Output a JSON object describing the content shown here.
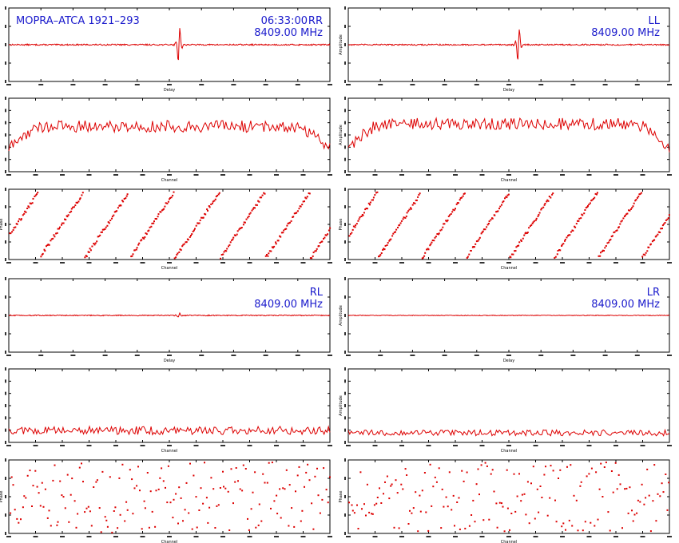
{
  "header": {
    "source": "MOPRA–ATCA 1921–293",
    "time": "06:33:00",
    "frequency": "8409.00 MHz"
  },
  "products": [
    "RR",
    "LL",
    "RL",
    "LR"
  ],
  "labels": {
    "delay_x": "Delay",
    "channel_x": "Channel",
    "amplitude_y": "Amplitude",
    "phase_y": "Phase"
  },
  "colors": {
    "trace": "#dd0000",
    "text": "#1a1acc",
    "axis": "#000000"
  },
  "chart_data": [
    {
      "type": "line",
      "product": "RR",
      "panel": "delay",
      "xlim": [
        -256,
        256
      ],
      "ylim": [
        -1,
        1
      ],
      "series": [
        {
          "name": "",
          "spike_at": 0.53,
          "spike_amp": 0.95,
          "noise": 0.02
        }
      ]
    },
    {
      "type": "line",
      "product": "RR",
      "panel": "amplitude",
      "xlim": [
        0,
        512
      ],
      "ylim": [
        0,
        1.1
      ],
      "series": [
        {
          "name": "",
          "level": 0.68,
          "rolloff": 0.12,
          "noise": 0.1
        }
      ]
    },
    {
      "type": "scatter",
      "product": "RR",
      "panel": "phase",
      "xlim": [
        0,
        512
      ],
      "ylim": [
        -180,
        180
      ],
      "series": [
        {
          "name": "",
          "wraps": 7.1,
          "noise": 0.05
        }
      ]
    },
    {
      "type": "line",
      "product": "LL",
      "panel": "delay",
      "xlim": [
        -256,
        256
      ],
      "ylim": [
        -1,
        1
      ],
      "series": [
        {
          "name": "",
          "spike_at": 0.53,
          "spike_amp": 0.9,
          "noise": 0.02
        }
      ]
    },
    {
      "type": "line",
      "product": "LL",
      "panel": "amplitude",
      "xlim": [
        0,
        512
      ],
      "ylim": [
        0,
        1.1
      ],
      "series": [
        {
          "name": "",
          "level": 0.72,
          "rolloff": 0.12,
          "noise": 0.1
        }
      ]
    },
    {
      "type": "scatter",
      "product": "LL",
      "panel": "phase",
      "xlim": [
        0,
        512
      ],
      "ylim": [
        -180,
        180
      ],
      "series": [
        {
          "name": "",
          "wraps": 7.3,
          "noise": 0.05
        }
      ]
    },
    {
      "type": "line",
      "product": "RL",
      "panel": "delay",
      "xlim": [
        -256,
        256
      ],
      "ylim": [
        -1,
        1
      ],
      "series": [
        {
          "name": "",
          "spike_at": 0.53,
          "spike_amp": 0.12,
          "noise": 0.015
        }
      ]
    },
    {
      "type": "line",
      "product": "RL",
      "panel": "amplitude",
      "xlim": [
        0,
        512
      ],
      "ylim": [
        0,
        1.1
      ],
      "series": [
        {
          "name": "",
          "level": 0.12,
          "rolloff": 0.0,
          "noise": 0.07
        }
      ]
    },
    {
      "type": "scatter",
      "product": "RL",
      "panel": "phase",
      "xlim": [
        0,
        512
      ],
      "ylim": [
        -180,
        180
      ],
      "series": [
        {
          "name": "",
          "wraps": 0,
          "noise": 1.0
        }
      ]
    },
    {
      "type": "line",
      "product": "LR",
      "panel": "delay",
      "xlim": [
        -256,
        256
      ],
      "ylim": [
        -1,
        1
      ],
      "series": [
        {
          "name": "",
          "spike_at": 0.53,
          "spike_amp": 0.0,
          "noise": 0.01
        }
      ]
    },
    {
      "type": "line",
      "product": "LR",
      "panel": "amplitude",
      "xlim": [
        0,
        512
      ],
      "ylim": [
        0,
        1.1
      ],
      "series": [
        {
          "name": "",
          "level": 0.08,
          "rolloff": 0.0,
          "noise": 0.05
        }
      ]
    },
    {
      "type": "scatter",
      "product": "LR",
      "panel": "phase",
      "xlim": [
        0,
        512
      ],
      "ylim": [
        -180,
        180
      ],
      "series": [
        {
          "name": "",
          "wraps": 0,
          "noise": 1.0
        }
      ]
    }
  ]
}
